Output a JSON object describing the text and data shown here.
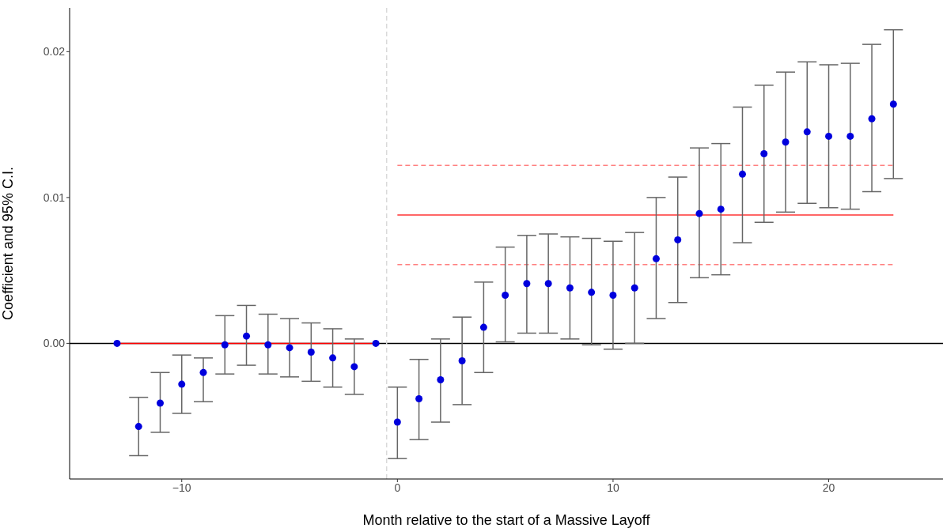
{
  "chart_data": {
    "type": "scatter",
    "xlabel": "Month relative to the start of a Massive Layoff",
    "ylabel": "Coefficient and 95% C.I.",
    "xlim": [
      -15.2,
      25.3
    ],
    "ylim": [
      -0.0093,
      0.023
    ],
    "xticks": [
      {
        "value": -10,
        "label": "−10"
      },
      0,
      10,
      20
    ],
    "yticks": [
      {
        "value": 0,
        "label": "0.00"
      },
      {
        "value": 0.01,
        "label": "0.01"
      },
      {
        "value": 0.02,
        "label": "0.02"
      }
    ],
    "marker": "circle",
    "ref_lines": [
      {
        "axis": "y",
        "value": 0,
        "color": "#000000",
        "line_style": "solid"
      },
      {
        "axis": "x",
        "value": -0.5,
        "color": "#d9d9d9",
        "line_style": "dashed"
      }
    ],
    "series": [
      {
        "type": "line",
        "color": "#ff0000",
        "x": [
          -13,
          -1
        ],
        "values": [
          0,
          0
        ],
        "line_style": "solid",
        "marker": "none"
      },
      {
        "type": "line",
        "color": "#ff3333",
        "x": [
          0,
          23
        ],
        "values": [
          0.0088,
          0.0088
        ],
        "line_style": "solid",
        "marker": "none"
      },
      {
        "type": "line",
        "color": "#ff8080",
        "x": [
          0,
          23
        ],
        "values": [
          0.0122,
          0.0122
        ],
        "line_style": "dashed",
        "marker": "none"
      },
      {
        "type": "line",
        "color": "#ff8080",
        "x": [
          0,
          23
        ],
        "values": [
          0.0054,
          0.0054
        ],
        "line_style": "dashed",
        "marker": "none"
      },
      {
        "type": "scatter",
        "color": "#0000dd",
        "x": [
          -13,
          -12,
          -11,
          -10,
          -9,
          -8,
          -7,
          -6,
          -5,
          -4,
          -3,
          -2,
          -1,
          0,
          1,
          2,
          3,
          4,
          5,
          6,
          7,
          8,
          9,
          10,
          11,
          12,
          13,
          14,
          15,
          16,
          17,
          18,
          19,
          20,
          21,
          22,
          23
        ],
        "values": [
          0,
          -0.0057,
          -0.0041,
          -0.0028,
          -0.002,
          -0.0001,
          0.0005,
          -0.0001,
          -0.0003,
          -0.0006,
          -0.001,
          -0.0016,
          0,
          -0.0054,
          -0.0038,
          -0.0025,
          -0.0012,
          0.0011,
          0.0033,
          0.0041,
          0.0041,
          0.0038,
          0.0035,
          0.0033,
          0.0038,
          0.0058,
          0.0071,
          0.0089,
          0.0092,
          0.0116,
          0.013,
          0.0138,
          0.0145,
          0.0142,
          0.0142,
          0.0154,
          0.0164
        ],
        "errors": [
          null,
          [
            -0.0077,
            -0.0037
          ],
          [
            -0.0061,
            -0.002
          ],
          [
            -0.0048,
            -0.0008
          ],
          [
            -0.004,
            -0.001
          ],
          [
            -0.0021,
            0.0019
          ],
          [
            -0.0015,
            0.0026
          ],
          [
            -0.0021,
            0.002
          ],
          [
            -0.0023,
            0.0017
          ],
          [
            -0.0026,
            0.0014
          ],
          [
            -0.003,
            0.001
          ],
          [
            -0.0035,
            0.0003
          ],
          null,
          [
            -0.0079,
            -0.003
          ],
          [
            -0.0066,
            -0.0011
          ],
          [
            -0.0054,
            0.0003
          ],
          [
            -0.0042,
            0.0018
          ],
          [
            -0.002,
            0.0042
          ],
          [
            0.0001,
            0.0066
          ],
          [
            0.0007,
            0.0074
          ],
          [
            0.0007,
            0.0075
          ],
          [
            0.0003,
            0.0073
          ],
          [
            -0.0001,
            0.0072
          ],
          [
            -0.0004,
            0.007
          ],
          [
            0,
            0.0076
          ],
          [
            0.0017,
            0.01
          ],
          [
            0.0028,
            0.0114
          ],
          [
            0.0045,
            0.0134
          ],
          [
            0.0047,
            0.0137
          ],
          [
            0.0069,
            0.0162
          ],
          [
            0.0083,
            0.0177
          ],
          [
            0.009,
            0.0186
          ],
          [
            0.0096,
            0.0193
          ],
          [
            0.0093,
            0.0191
          ],
          [
            0.0092,
            0.0192
          ],
          [
            0.0104,
            0.0205
          ],
          [
            0.0113,
            0.0215
          ]
        ]
      }
    ]
  }
}
